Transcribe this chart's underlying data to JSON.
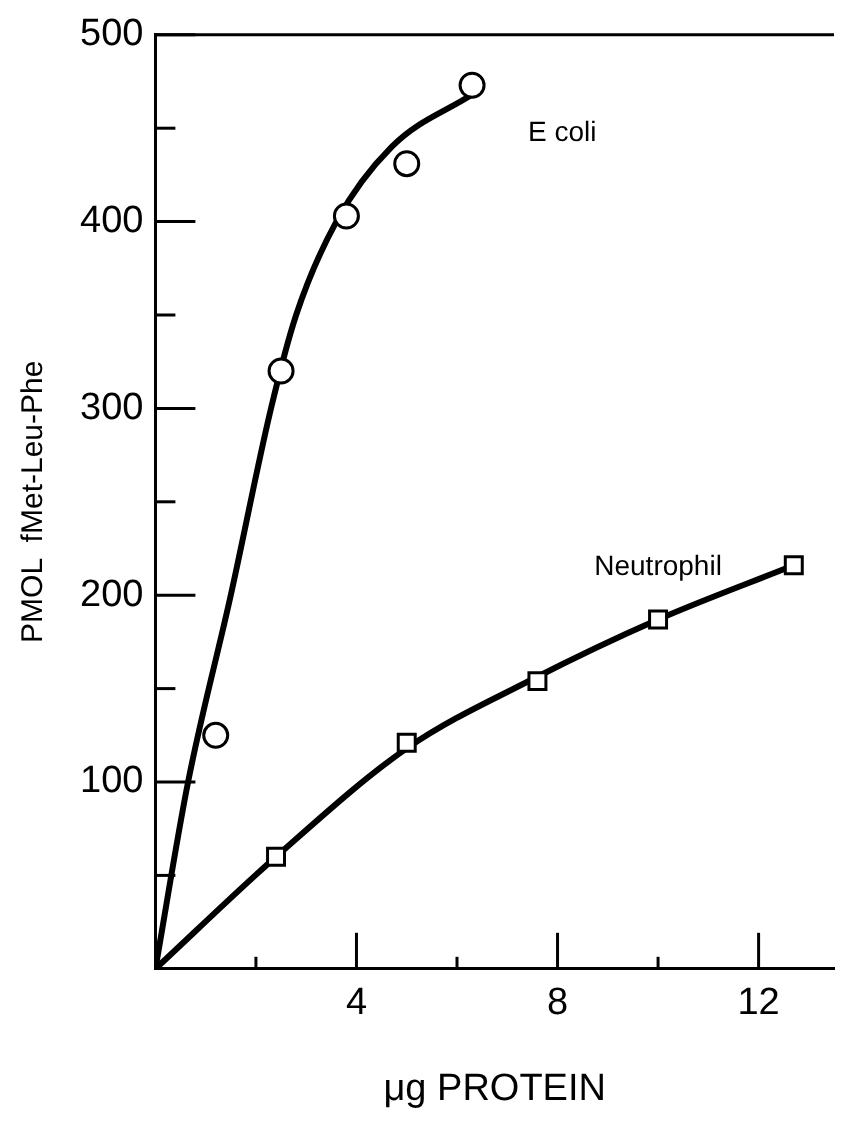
{
  "chart_data": {
    "type": "scatter",
    "xlabel": "μg PROTEIN",
    "ylabel": "PMOL  fMet-Leu-Phe",
    "xlim": [
      0,
      13.5
    ],
    "ylim": [
      0,
      500
    ],
    "xticks": [
      {
        "value": 2,
        "label": null
      },
      4,
      {
        "value": 6,
        "label": null
      },
      8,
      {
        "value": 10,
        "label": null
      },
      12
    ],
    "yticks": [
      {
        "value": 50,
        "label": null
      },
      100,
      {
        "value": 150,
        "label": null
      },
      200,
      {
        "value": 250,
        "label": null
      },
      300,
      {
        "value": 350,
        "label": null
      },
      400,
      {
        "value": 450,
        "label": null
      },
      500
    ],
    "grid": false,
    "legend": false,
    "series": [
      {
        "name": "E coli",
        "marker": "circle",
        "color": "#000000",
        "x": [
          1.2,
          2.5,
          3.8,
          5.0,
          6.3
        ],
        "values": [
          125,
          320,
          403,
          431,
          473
        ]
      },
      {
        "type": "line",
        "marker": "none",
        "color": "#000000",
        "x": [
          0,
          0.65,
          1.5,
          2.3,
          2.8,
          3.6,
          4.7,
          6.3
        ],
        "values": [
          0,
          100,
          200,
          300,
          350,
          400,
          440,
          468
        ]
      },
      {
        "name": "Neutrophil",
        "marker": "square",
        "color": "#000000",
        "x": [
          2.4,
          5.0,
          7.6,
          10.0,
          12.7
        ],
        "values": [
          60,
          121,
          154,
          187,
          216
        ]
      },
      {
        "type": "line",
        "marker": "none",
        "color": "#000000",
        "x": [
          0,
          2.4,
          5.0,
          7.5,
          10.0,
          12.7
        ],
        "values": [
          0,
          60,
          118,
          155,
          187,
          216
        ]
      }
    ]
  }
}
